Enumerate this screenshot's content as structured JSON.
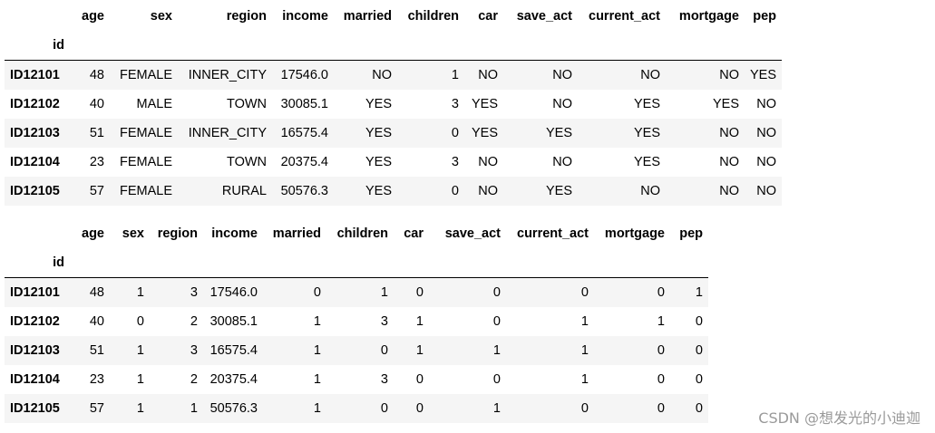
{
  "tables": [
    {
      "columns": [
        "age",
        "sex",
        "region",
        "income",
        "married",
        "children",
        "car",
        "save_act",
        "current_act",
        "mortgage",
        "pep"
      ],
      "index_name": "id",
      "rows": [
        {
          "id": "ID12101",
          "cells": [
            "48",
            "FEMALE",
            "INNER_CITY",
            "17546.0",
            "NO",
            "1",
            "NO",
            "NO",
            "NO",
            "NO",
            "YES"
          ]
        },
        {
          "id": "ID12102",
          "cells": [
            "40",
            "MALE",
            "TOWN",
            "30085.1",
            "YES",
            "3",
            "YES",
            "NO",
            "YES",
            "YES",
            "NO"
          ]
        },
        {
          "id": "ID12103",
          "cells": [
            "51",
            "FEMALE",
            "INNER_CITY",
            "16575.4",
            "YES",
            "0",
            "YES",
            "YES",
            "YES",
            "NO",
            "NO"
          ]
        },
        {
          "id": "ID12104",
          "cells": [
            "23",
            "FEMALE",
            "TOWN",
            "20375.4",
            "YES",
            "3",
            "NO",
            "NO",
            "YES",
            "NO",
            "NO"
          ]
        },
        {
          "id": "ID12105",
          "cells": [
            "57",
            "FEMALE",
            "RURAL",
            "50576.3",
            "YES",
            "0",
            "NO",
            "YES",
            "NO",
            "NO",
            "NO"
          ]
        }
      ]
    },
    {
      "columns": [
        "age",
        "sex",
        "region",
        "income",
        "married",
        "children",
        "car",
        "save_act",
        "current_act",
        "mortgage",
        "pep"
      ],
      "index_name": "id",
      "rows": [
        {
          "id": "ID12101",
          "cells": [
            "48",
            "1",
            "3",
            "17546.0",
            "0",
            "1",
            "0",
            "0",
            "0",
            "0",
            "1"
          ]
        },
        {
          "id": "ID12102",
          "cells": [
            "40",
            "0",
            "2",
            "30085.1",
            "1",
            "3",
            "1",
            "0",
            "1",
            "1",
            "0"
          ]
        },
        {
          "id": "ID12103",
          "cells": [
            "51",
            "1",
            "3",
            "16575.4",
            "1",
            "0",
            "1",
            "1",
            "1",
            "0",
            "0"
          ]
        },
        {
          "id": "ID12104",
          "cells": [
            "23",
            "1",
            "2",
            "20375.4",
            "1",
            "3",
            "0",
            "0",
            "1",
            "0",
            "0"
          ]
        },
        {
          "id": "ID12105",
          "cells": [
            "57",
            "1",
            "1",
            "50576.3",
            "1",
            "0",
            "0",
            "1",
            "0",
            "0",
            "0"
          ]
        }
      ]
    }
  ],
  "watermark": "CSDN @想发光的小迪迦"
}
